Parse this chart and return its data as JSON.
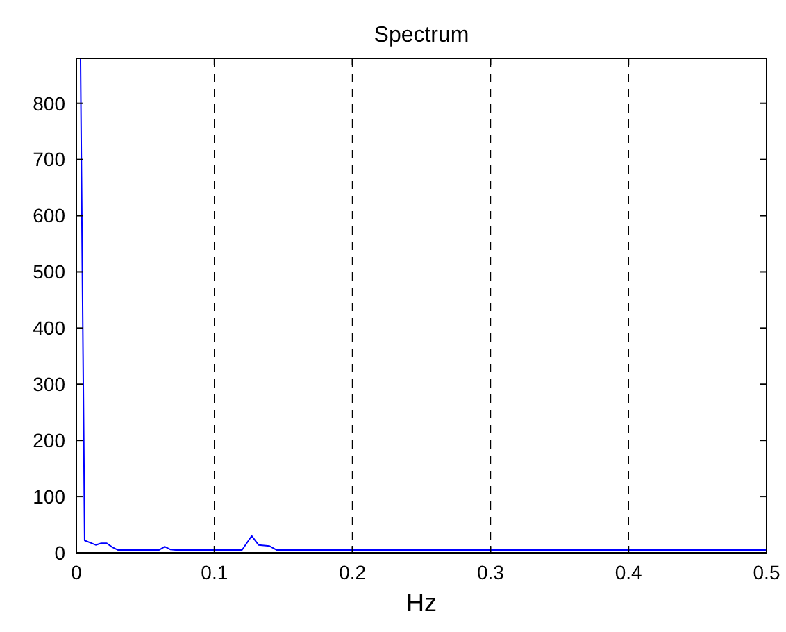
{
  "chart_data": {
    "type": "line",
    "title": "Spectrum",
    "xlabel": "Hz",
    "x": [
      0.003,
      0.006,
      0.01,
      0.014,
      0.018,
      0.022,
      0.026,
      0.03,
      0.06,
      0.064,
      0.068,
      0.072,
      0.12,
      0.127,
      0.132,
      0.14,
      0.145,
      0.5
    ],
    "series": [
      {
        "color": "#0000ff",
        "values": [
          880,
          22,
          18,
          14,
          17,
          17,
          10,
          5,
          5,
          11,
          6,
          5,
          5,
          30,
          14,
          12,
          5,
          5
        ]
      }
    ],
    "xlim": [
      0,
      0.5
    ],
    "xticks": [
      0,
      0.1,
      0.2,
      0.3,
      0.4,
      0.5
    ],
    "ylim": [
      0,
      880
    ],
    "yticks": [
      0,
      100,
      200,
      300,
      400,
      500,
      600,
      700,
      800
    ],
    "grid": "x",
    "line_style": "solid"
  }
}
